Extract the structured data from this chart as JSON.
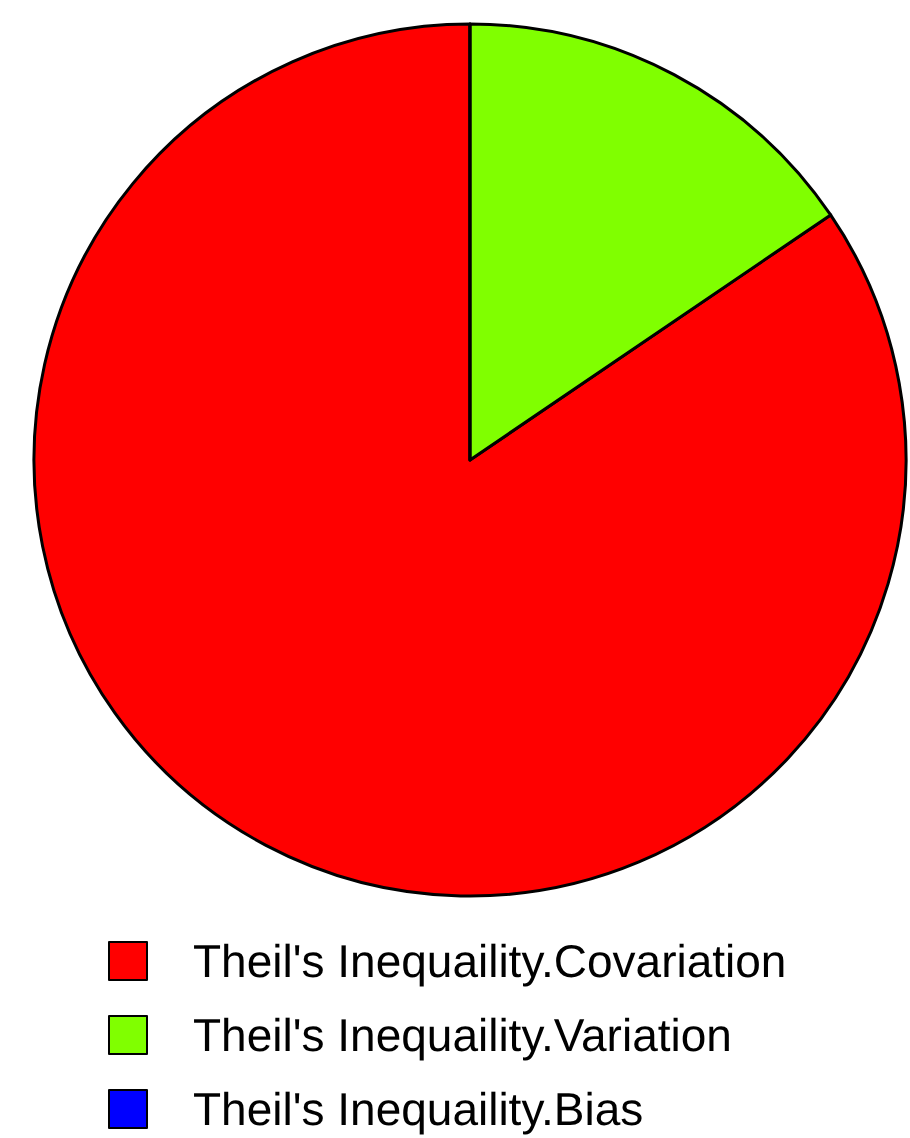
{
  "chart_data": {
    "type": "pie",
    "categories": [
      "Theil's Inequaility.Covariation",
      "Theil's Inequaility.Variation",
      "Theil's Inequaility.Bias"
    ],
    "values": [
      84.5,
      15.5,
      0
    ],
    "colors": [
      "#ff0000",
      "#80ff00",
      "#0000ff"
    ],
    "legend": "bottom"
  }
}
